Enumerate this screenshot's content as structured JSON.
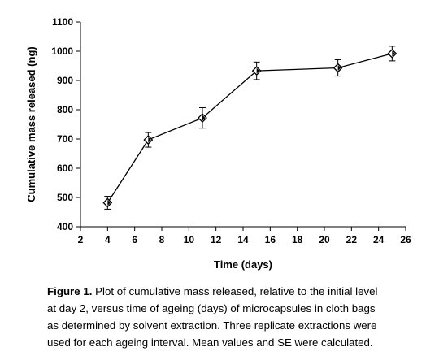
{
  "chart_data": {
    "type": "line",
    "xlabel": "Time (days)",
    "ylabel": "Cumulative mass released (ng)",
    "xlim": [
      2,
      26
    ],
    "ylim": [
      400,
      1100
    ],
    "xticks": [
      2,
      4,
      6,
      8,
      10,
      12,
      14,
      16,
      18,
      20,
      22,
      24,
      26
    ],
    "yticks": [
      400,
      500,
      600,
      700,
      800,
      900,
      1000,
      1100
    ],
    "grid": false,
    "series": [
      {
        "x": [
          4,
          7,
          11,
          15,
          21,
          25
        ],
        "y": [
          482,
          697,
          772,
          933,
          943,
          992
        ],
        "error": [
          22,
          25,
          35,
          30,
          28,
          25
        ],
        "marker": "diamond"
      }
    ],
    "line_color": "#000000"
  },
  "caption": {
    "label": "Figure 1.",
    "lines": [
      "Plot of cumulative mass released, relative to the initial level",
      "at day 2, versus time of ageing (days) of microcapsules in cloth bags",
      "as determined by solvent extraction. Three replicate extractions were",
      "used for each ageing interval. Mean values and SE were calculated."
    ]
  }
}
